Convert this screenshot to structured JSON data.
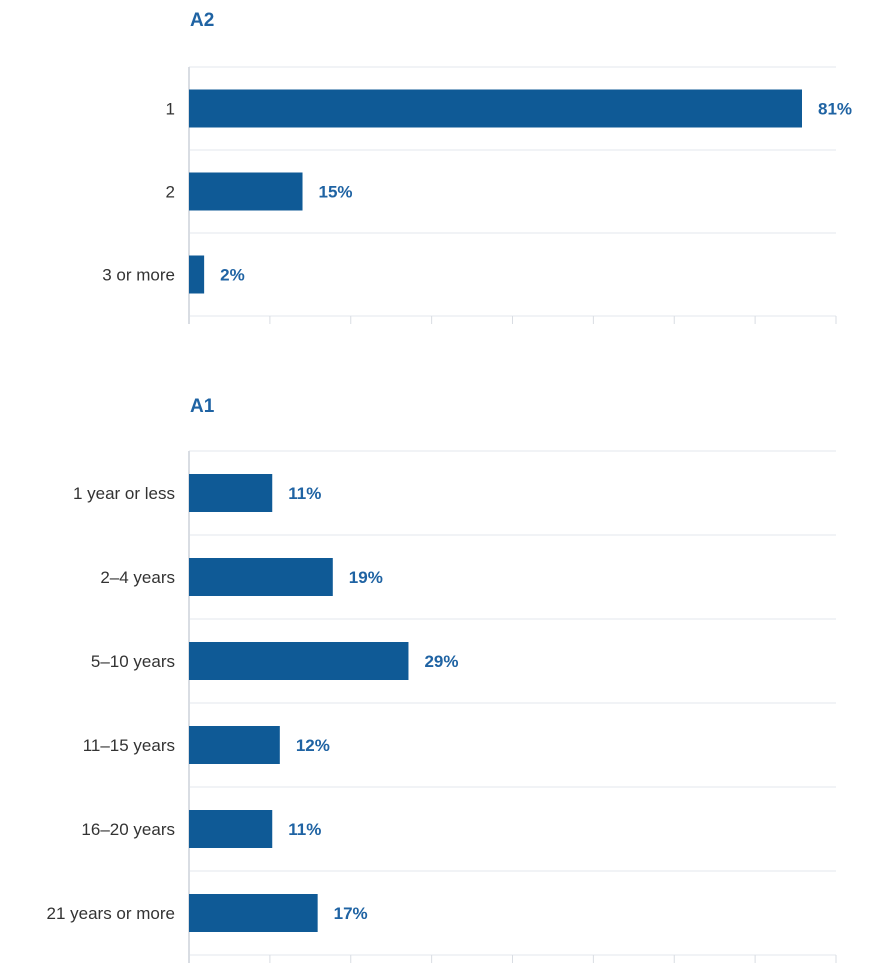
{
  "colors": {
    "bar": "#0f5a96",
    "label": "#1f63a3",
    "category_text": "#333333",
    "grid": "#e3e7ec",
    "axis": "#d9dde3"
  },
  "chart_data": [
    {
      "type": "bar",
      "orientation": "horizontal",
      "title": "A2",
      "categories": [
        "1",
        "2",
        "3 or more"
      ],
      "values": [
        81,
        15,
        2
      ],
      "value_labels": [
        "81%",
        "15%",
        "2%"
      ],
      "xlim": [
        0,
        85
      ],
      "grid": true
    },
    {
      "type": "bar",
      "orientation": "horizontal",
      "title": "A1",
      "categories": [
        "1 year or less",
        "2–4 years",
        "5–10 years",
        "11–15 years",
        "16–20 years",
        "21 years or more"
      ],
      "values": [
        11,
        19,
        29,
        12,
        11,
        17
      ],
      "value_labels": [
        "11%",
        "19%",
        "29%",
        "12%",
        "11%",
        "17%"
      ],
      "xlim": [
        0,
        85
      ],
      "grid": true
    }
  ]
}
